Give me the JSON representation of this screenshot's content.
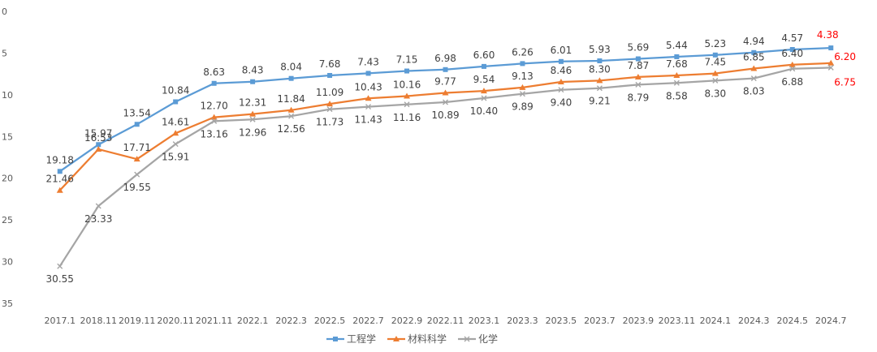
{
  "chart_data": {
    "type": "line",
    "title": "",
    "xlabel": "",
    "ylabel": "",
    "y_reversed": true,
    "ylim": [
      0,
      35
    ],
    "yticks": [
      0,
      5,
      10,
      15,
      20,
      25,
      30,
      35
    ],
    "grid": false,
    "legend_position": "bottom",
    "categories": [
      "2017.1",
      "2018.11",
      "2019.11",
      "2020.11",
      "2021.11",
      "2022.1",
      "2022.3",
      "2022.5",
      "2022.7",
      "2022.9",
      "2022.11",
      "2023.1",
      "2023.3",
      "2023.5",
      "2023.7",
      "2023.9",
      "2023.11",
      "2024.1",
      "2024.3",
      "2024.5",
      "2024.7"
    ],
    "series": [
      {
        "name": "工程学",
        "color": "#5b9bd5",
        "marker": "square",
        "values": [
          19.18,
          15.97,
          13.54,
          10.84,
          8.63,
          8.43,
          8.04,
          7.68,
          7.43,
          7.15,
          6.98,
          6.6,
          6.26,
          6.01,
          5.93,
          5.69,
          5.44,
          5.23,
          4.94,
          4.57,
          4.38
        ],
        "labels": [
          "19.18",
          "15.97",
          "13.54",
          "10.84",
          "8.63",
          "8.43",
          "8.04",
          "7.68",
          "7.43",
          "7.15",
          "6.98",
          "6.60",
          "6.26",
          "6.01",
          "5.93",
          "5.69",
          "5.44",
          "5.23",
          "4.94",
          "4.57",
          "4.38"
        ]
      },
      {
        "name": "材料科学",
        "color": "#ed7d31",
        "marker": "triangle",
        "values": [
          21.46,
          16.53,
          17.71,
          14.61,
          12.7,
          12.31,
          11.84,
          11.09,
          10.43,
          10.16,
          9.77,
          9.54,
          9.13,
          8.46,
          8.3,
          7.87,
          7.68,
          7.45,
          6.85,
          6.4,
          6.2
        ],
        "labels": [
          "21.46",
          "16.53",
          "17.71",
          "14.61",
          "12.70",
          "12.31",
          "11.84",
          "11.09",
          "10.43",
          "10.16",
          "9.77",
          "9.54",
          "9.13",
          "8.46",
          "8.30",
          "7.87",
          "7.68",
          "7.45",
          "6.85",
          "6.40",
          "6.20"
        ]
      },
      {
        "name": "化学",
        "color": "#a5a5a5",
        "marker": "x",
        "values": [
          30.55,
          23.33,
          19.55,
          15.91,
          13.16,
          12.96,
          12.56,
          11.73,
          11.43,
          11.16,
          10.89,
          10.4,
          9.89,
          9.4,
          9.21,
          8.79,
          8.58,
          8.3,
          8.03,
          6.88,
          6.75
        ],
        "labels": [
          "30.55",
          "23.33",
          "19.55",
          "15.91",
          "13.16",
          "12.96",
          "12.56",
          "11.73",
          "11.43",
          "11.16",
          "10.89",
          "10.40",
          "9.89",
          "9.40",
          "9.21",
          "8.79",
          "8.58",
          "8.30",
          "8.03",
          "6.88",
          "6.75"
        ]
      }
    ],
    "highlight_color": "#ff0000"
  }
}
